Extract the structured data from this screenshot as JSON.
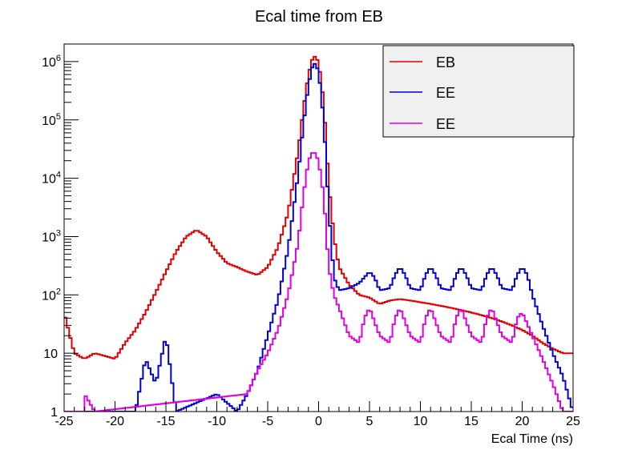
{
  "chart_data": {
    "type": "line",
    "title": "Ecal time from EB",
    "xlabel": "Ecal Time (ns)",
    "ylabel": "",
    "xlim": [
      -25,
      25
    ],
    "ylim": [
      1,
      2000000
    ],
    "ylog": true,
    "grid": false,
    "legend_position": "top-right",
    "x_ticks": [
      -25,
      -20,
      -15,
      -10,
      -5,
      0,
      5,
      10,
      15,
      20,
      25
    ],
    "x_tick_labels": [
      "-25",
      "-20",
      "-15",
      "-10",
      "-5",
      "0",
      "5",
      "10",
      "15",
      "20",
      "25"
    ],
    "y_ticks": [
      {
        "value": 1,
        "base": "1",
        "exp": ""
      },
      {
        "value": 10,
        "base": "10",
        "exp": ""
      },
      {
        "value": 100,
        "base": "10",
        "exp": "2"
      },
      {
        "value": 1000,
        "base": "10",
        "exp": "3"
      },
      {
        "value": 10000,
        "base": "10",
        "exp": "4"
      },
      {
        "value": 100000,
        "base": "10",
        "exp": "5"
      },
      {
        "value": 1000000,
        "base": "10",
        "exp": "6"
      }
    ],
    "series": [
      {
        "name": "EB",
        "color": "#e00000",
        "x": [
          -25,
          -24,
          -23,
          -22,
          -21,
          -20,
          -19,
          -18,
          -17,
          -16,
          -15,
          -14,
          -13,
          -12,
          -11,
          -10,
          -9,
          -8,
          -7,
          -6,
          -5,
          -4,
          -3,
          -2,
          -1.5,
          -1,
          -0.5,
          0,
          0.5,
          1,
          1.5,
          2,
          3,
          4,
          5,
          6,
          7,
          8,
          9,
          10,
          11,
          12,
          13,
          14,
          15,
          16,
          17,
          18,
          19,
          20,
          21,
          22,
          23,
          24,
          25
        ],
        "y": [
          50,
          10,
          8,
          10,
          9,
          8,
          15,
          25,
          50,
          110,
          250,
          550,
          1000,
          1300,
          1000,
          550,
          350,
          300,
          250,
          220,
          300,
          650,
          2500,
          30000,
          150000,
          600000,
          1300000,
          1000000,
          200000,
          8000,
          1000,
          300,
          150,
          100,
          90,
          70,
          80,
          85,
          80,
          75,
          70,
          65,
          60,
          55,
          50,
          45,
          40,
          35,
          30,
          25,
          20,
          15,
          12,
          10,
          10
        ]
      },
      {
        "name": "EE",
        "color": "#0000d0",
        "x": [
          -18,
          -17,
          -16,
          -15,
          -14,
          -10,
          -8,
          -7,
          -6,
          -5,
          -4,
          -3,
          -2,
          -1.5,
          -1,
          -0.5,
          0,
          0.5,
          1,
          1.5,
          2,
          3,
          4,
          4.5,
          5,
          5.5,
          6,
          7,
          7.5,
          8,
          8.5,
          9,
          10,
          10.5,
          11,
          11.5,
          12,
          13,
          13.5,
          14,
          14.5,
          15,
          16,
          16.5,
          17,
          17.5,
          18,
          19,
          19.5,
          20,
          20.5,
          21,
          22,
          23,
          24,
          25
        ],
        "y": [
          1,
          8,
          3,
          20,
          1,
          2,
          1,
          2,
          5,
          20,
          80,
          600,
          12000,
          80000,
          400000,
          1000000,
          700000,
          100000,
          3000,
          200,
          120,
          130,
          160,
          200,
          250,
          200,
          120,
          130,
          220,
          300,
          220,
          130,
          120,
          220,
          300,
          220,
          130,
          120,
          220,
          300,
          220,
          130,
          120,
          220,
          300,
          220,
          130,
          120,
          220,
          300,
          220,
          100,
          30,
          10,
          4,
          1
        ]
      },
      {
        "name": "EE",
        "color": "#e000e0",
        "x": [
          -23,
          -22,
          -7,
          -6,
          -5,
          -4,
          -3,
          -2,
          -1.5,
          -1,
          -0.5,
          0,
          0.5,
          1,
          1.5,
          2,
          3,
          4,
          4.5,
          5,
          6,
          7,
          7.5,
          8,
          9,
          10,
          10.5,
          11,
          12,
          13,
          13.5,
          14,
          15,
          16,
          16.5,
          17,
          18,
          19,
          19.5,
          20,
          21,
          22,
          23,
          24
        ],
        "y": [
          2,
          1,
          2,
          5,
          10,
          25,
          100,
          800,
          5000,
          20000,
          30000,
          20000,
          5000,
          300,
          100,
          60,
          20,
          15,
          40,
          60,
          20,
          15,
          40,
          60,
          20,
          15,
          40,
          60,
          20,
          15,
          40,
          60,
          20,
          15,
          40,
          60,
          20,
          15,
          40,
          50,
          20,
          8,
          3,
          1
        ]
      }
    ]
  }
}
